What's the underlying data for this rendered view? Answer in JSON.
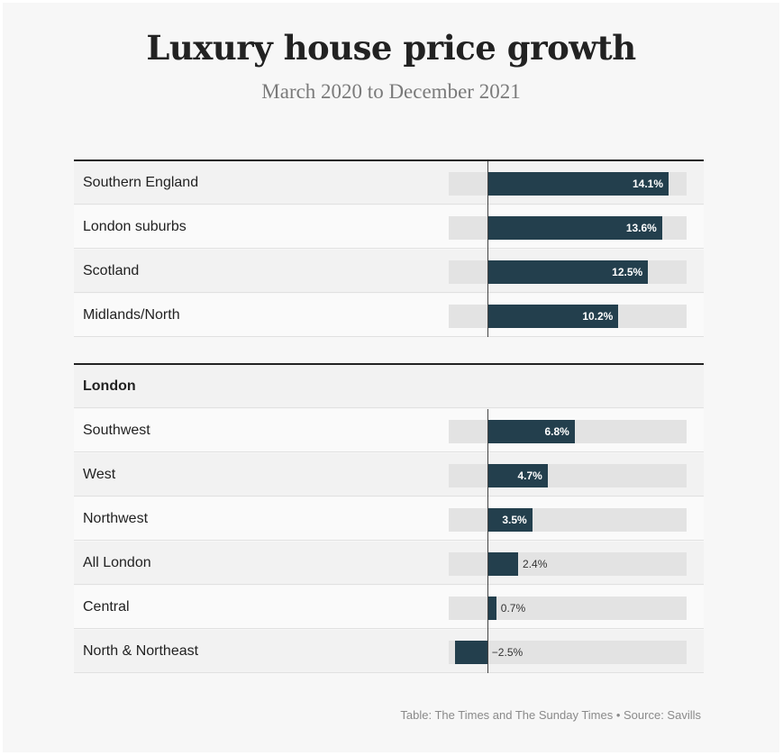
{
  "chart_data": {
    "type": "bar",
    "orientation": "horizontal",
    "title": "Luxury house price growth",
    "subtitle": "March 2020 to December 2021",
    "xlim": [
      -3,
      15.5
    ],
    "groups": [
      {
        "name": "",
        "rows": [
          {
            "label": "Southern England",
            "value": 14.1,
            "display": "14.1%"
          },
          {
            "label": "London suburbs",
            "value": 13.6,
            "display": "13.6%"
          },
          {
            "label": "Scotland",
            "value": 12.5,
            "display": "12.5%"
          },
          {
            "label": "Midlands/North",
            "value": 10.2,
            "display": "10.2%"
          }
        ]
      },
      {
        "name": "London",
        "rows": [
          {
            "label": "Southwest",
            "value": 6.8,
            "display": "6.8%"
          },
          {
            "label": "West",
            "value": 4.7,
            "display": "4.7%"
          },
          {
            "label": "Northwest",
            "value": 3.5,
            "display": "3.5%"
          },
          {
            "label": "All London",
            "value": 2.4,
            "display": "2.4%"
          },
          {
            "label": "Central",
            "value": 0.7,
            "display": "0.7%"
          },
          {
            "label": "North & Northeast",
            "value": -2.5,
            "display": "−2.5%"
          }
        ]
      }
    ],
    "source": "Table: The Times and The Sunday Times • Source: Savills",
    "colors": {
      "bar": "#233f4d",
      "track": "#e3e3e3",
      "text": "#222222"
    }
  }
}
